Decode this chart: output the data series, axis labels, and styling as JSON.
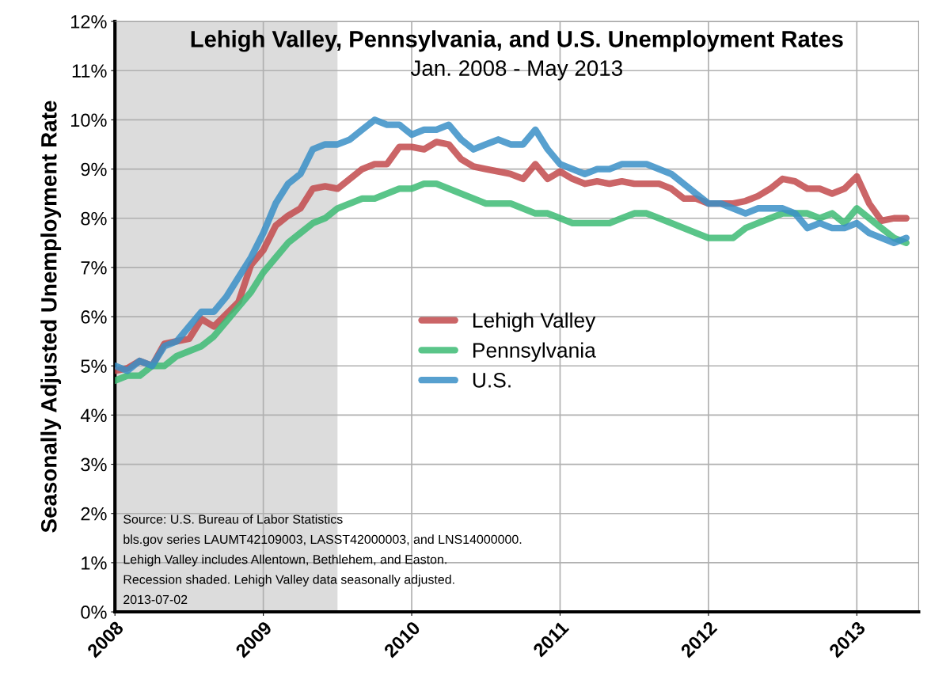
{
  "chart_data": {
    "type": "line",
    "title": "Lehigh Valley, Pennsylvania, and U.S. Unemployment Rates",
    "subtitle": "Jan. 2008 - May 2013",
    "ylabel": "Seasonally Adjusted Unemployment Rate",
    "x": [
      "2008-01",
      "2008-02",
      "2008-03",
      "2008-04",
      "2008-05",
      "2008-06",
      "2008-07",
      "2008-08",
      "2008-09",
      "2008-10",
      "2008-11",
      "2008-12",
      "2009-01",
      "2009-02",
      "2009-03",
      "2009-04",
      "2009-05",
      "2009-06",
      "2009-07",
      "2009-08",
      "2009-09",
      "2009-10",
      "2009-11",
      "2009-12",
      "2010-01",
      "2010-02",
      "2010-03",
      "2010-04",
      "2010-05",
      "2010-06",
      "2010-07",
      "2010-08",
      "2010-09",
      "2010-10",
      "2010-11",
      "2010-12",
      "2011-01",
      "2011-02",
      "2011-03",
      "2011-04",
      "2011-05",
      "2011-06",
      "2011-07",
      "2011-08",
      "2011-09",
      "2011-10",
      "2011-11",
      "2011-12",
      "2012-01",
      "2012-02",
      "2012-03",
      "2012-04",
      "2012-05",
      "2012-06",
      "2012-07",
      "2012-08",
      "2012-09",
      "2012-10",
      "2012-11",
      "2012-12",
      "2013-01",
      "2013-02",
      "2013-03",
      "2013-04",
      "2013-05"
    ],
    "series": [
      {
        "name": "Lehigh Valley",
        "color": "#c24a4c",
        "values": [
          4.9,
          4.95,
          5.1,
          5.0,
          5.45,
          5.5,
          5.55,
          5.95,
          5.8,
          6.05,
          6.3,
          7.05,
          7.35,
          7.85,
          8.05,
          8.2,
          8.6,
          8.65,
          8.6,
          8.8,
          9.0,
          9.1,
          9.1,
          9.45,
          9.45,
          9.4,
          9.55,
          9.5,
          9.2,
          9.05,
          9.0,
          8.95,
          8.9,
          8.8,
          9.1,
          8.8,
          8.95,
          8.8,
          8.7,
          8.75,
          8.7,
          8.75,
          8.7,
          8.7,
          8.7,
          8.6,
          8.4,
          8.4,
          8.3,
          8.3,
          8.3,
          8.35,
          8.45,
          8.6,
          8.8,
          8.75,
          8.6,
          8.6,
          8.5,
          8.6,
          8.85,
          8.3,
          7.95,
          8.0,
          8.0
        ]
      },
      {
        "name": "Pennsylvania",
        "color": "#3dbb74",
        "values": [
          4.7,
          4.8,
          4.8,
          5.0,
          5.0,
          5.2,
          5.3,
          5.4,
          5.6,
          5.9,
          6.2,
          6.5,
          6.9,
          7.2,
          7.5,
          7.7,
          7.9,
          8.0,
          8.2,
          8.3,
          8.4,
          8.4,
          8.5,
          8.6,
          8.6,
          8.7,
          8.7,
          8.6,
          8.5,
          8.4,
          8.3,
          8.3,
          8.3,
          8.2,
          8.1,
          8.1,
          8.0,
          7.9,
          7.9,
          7.9,
          7.9,
          8.0,
          8.1,
          8.1,
          8.0,
          7.9,
          7.8,
          7.7,
          7.6,
          7.6,
          7.6,
          7.8,
          7.9,
          8.0,
          8.1,
          8.1,
          8.1,
          8.0,
          8.1,
          7.9,
          8.2,
          8.0,
          7.8,
          7.6,
          7.5
        ]
      },
      {
        "name": "U.S.",
        "color": "#3a8fc7",
        "values": [
          5.0,
          4.9,
          5.1,
          5.0,
          5.4,
          5.5,
          5.8,
          6.1,
          6.1,
          6.4,
          6.8,
          7.2,
          7.7,
          8.3,
          8.7,
          8.9,
          9.4,
          9.5,
          9.5,
          9.6,
          9.8,
          10.0,
          9.9,
          9.9,
          9.7,
          9.8,
          9.8,
          9.9,
          9.6,
          9.4,
          9.5,
          9.6,
          9.5,
          9.5,
          9.8,
          9.4,
          9.1,
          9.0,
          8.9,
          9.0,
          9.0,
          9.1,
          9.1,
          9.1,
          9.0,
          8.9,
          8.7,
          8.5,
          8.3,
          8.3,
          8.2,
          8.1,
          8.2,
          8.2,
          8.2,
          8.1,
          7.8,
          7.9,
          7.8,
          7.8,
          7.9,
          7.7,
          7.6,
          7.5,
          7.6
        ]
      }
    ],
    "xlim": [
      "2008-01",
      "2013-06"
    ],
    "xticks": [
      {
        "value": "2008-01",
        "label": "2008"
      },
      {
        "value": "2009-01",
        "label": "2009"
      },
      {
        "value": "2010-01",
        "label": "2010"
      },
      {
        "value": "2011-01",
        "label": "2011"
      },
      {
        "value": "2012-01",
        "label": "2012"
      },
      {
        "value": "2013-01",
        "label": "2013"
      }
    ],
    "ylim": [
      0,
      12
    ],
    "yticks": [
      {
        "value": 0,
        "label": "0%"
      },
      {
        "value": 1,
        "label": "1%"
      },
      {
        "value": 2,
        "label": "2%"
      },
      {
        "value": 3,
        "label": "3%"
      },
      {
        "value": 4,
        "label": "4%"
      },
      {
        "value": 5,
        "label": "5%"
      },
      {
        "value": 6,
        "label": "6%"
      },
      {
        "value": 7,
        "label": "7%"
      },
      {
        "value": 8,
        "label": "8%"
      },
      {
        "value": 9,
        "label": "9%"
      },
      {
        "value": 10,
        "label": "10%"
      },
      {
        "value": 11,
        "label": "11%"
      },
      {
        "value": 12,
        "label": "12%"
      }
    ],
    "bands": [
      {
        "axis": "x",
        "from": "2008-01",
        "to": "2009-07",
        "color": "#dcdcdc"
      }
    ],
    "annotations": [
      "Source: U.S. Bureau of Labor Statistics",
      "bls.gov series LAUMT42109003, LASST42000003, and LNS14000000.",
      "Lehigh Valley includes Allentown, Bethlehem, and Easton.",
      "Recession shaded. Lehigh Valley data seasonally adjusted.",
      "2013-07-02"
    ],
    "grid": true,
    "legend": "center",
    "line_style": "solid",
    "marker": "none"
  }
}
